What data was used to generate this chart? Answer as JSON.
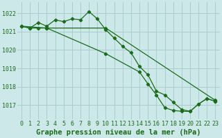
{
  "xlabel": "Graphe pression niveau de la mer (hPa)",
  "xlim": [
    -0.5,
    23.5
  ],
  "ylim": [
    1016.2,
    1022.6
  ],
  "yticks": [
    1017,
    1018,
    1019,
    1020,
    1021,
    1022
  ],
  "xticks": [
    0,
    1,
    2,
    3,
    4,
    5,
    6,
    7,
    8,
    9,
    10,
    11,
    12,
    13,
    14,
    15,
    16,
    17,
    18,
    19,
    20,
    21,
    22,
    23
  ],
  "bg_color": "#cce8e8",
  "grid_color": "#aacccc",
  "line_color": "#1a6b1a",
  "line1": {
    "x": [
      0,
      1,
      2,
      3,
      4,
      5,
      6,
      7,
      8,
      9,
      10,
      11,
      12,
      13,
      14,
      15,
      16,
      17,
      18,
      19,
      20,
      21,
      22,
      23
    ],
    "y": [
      1021.3,
      1021.2,
      1021.5,
      1021.3,
      1021.65,
      1021.55,
      1021.7,
      1021.65,
      1022.1,
      1021.7,
      1021.1,
      1020.65,
      1020.2,
      1019.85,
      1019.1,
      1018.65,
      1017.75,
      1017.55,
      1017.15,
      1016.75,
      1016.65,
      1017.05,
      1017.35,
      1017.2
    ]
  },
  "line2": {
    "x": [
      0,
      1,
      2,
      3,
      10,
      23
    ],
    "y": [
      1021.3,
      1021.2,
      1021.2,
      1021.2,
      1021.2,
      1017.25
    ]
  },
  "line3": {
    "x": [
      0,
      3,
      10,
      14,
      15,
      16,
      17,
      18,
      19,
      20,
      21,
      22,
      23
    ],
    "y": [
      1021.3,
      1021.2,
      1019.8,
      1018.8,
      1018.15,
      1017.55,
      1016.85,
      1016.7,
      1016.65,
      1016.65,
      1017.05,
      1017.35,
      1017.2
    ]
  },
  "font_family": "monospace",
  "xlabel_fontsize": 7.5,
  "tick_fontsize": 6.0
}
